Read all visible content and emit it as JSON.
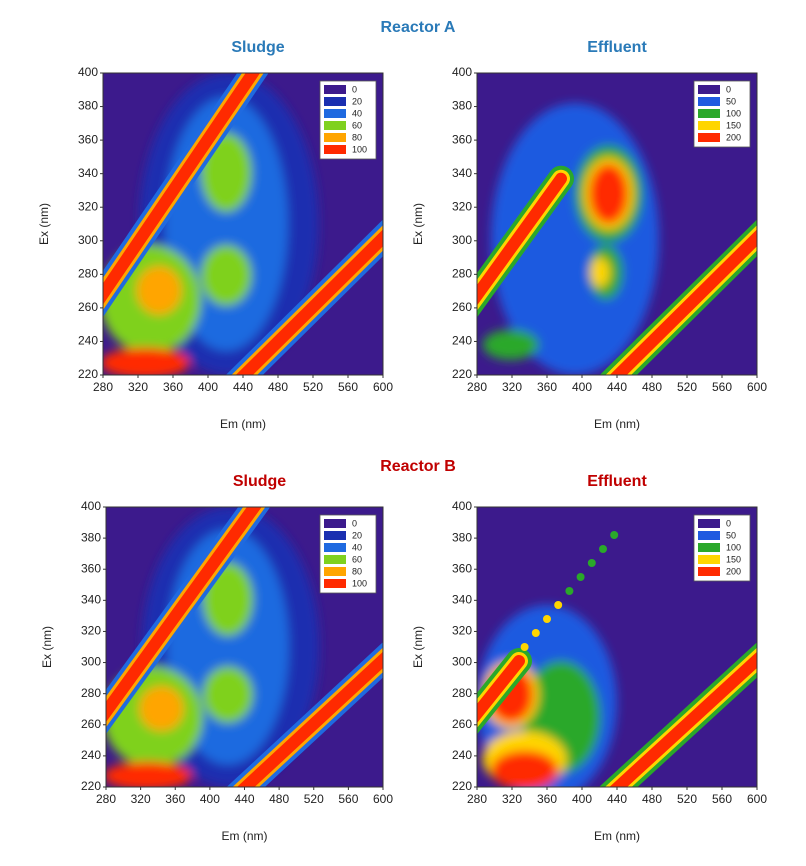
{
  "headings": [
    {
      "text": "Reactor A",
      "color": "#2a7ab8"
    },
    {
      "text": "Reactor B",
      "color": "#c00000"
    }
  ],
  "chart_data": [
    {
      "type": "contour",
      "title": "Sludge",
      "title_color": "#2a7ab8",
      "x_label": "Em (nm)",
      "y_label": "Ex (nm)",
      "xlim": [
        280,
        600
      ],
      "ylim": [
        220,
        400
      ],
      "xticks": [
        280,
        320,
        360,
        400,
        440,
        480,
        520,
        560,
        600
      ],
      "yticks": [
        220,
        240,
        260,
        280,
        300,
        320,
        340,
        360,
        380,
        400
      ],
      "legend": {
        "levels": [
          0,
          20,
          40,
          60,
          80,
          100
        ],
        "colors": [
          "#3c1a8c",
          "#1a2fb0",
          "#1f6ae0",
          "#7fd11e",
          "#ffa500",
          "#ff2a00"
        ]
      }
    },
    {
      "type": "contour",
      "title": "Effluent",
      "title_color": "#2a7ab8",
      "x_label": "Em (nm)",
      "y_label": "Ex (nm)",
      "xlim": [
        280,
        600
      ],
      "ylim": [
        220,
        400
      ],
      "xticks": [
        280,
        320,
        360,
        400,
        440,
        480,
        520,
        560,
        600
      ],
      "yticks": [
        220,
        240,
        260,
        280,
        300,
        320,
        340,
        360,
        380,
        400
      ],
      "legend": {
        "levels": [
          0,
          50,
          100,
          150,
          200
        ],
        "colors": [
          "#3c1a8c",
          "#1f5ae0",
          "#2aa82a",
          "#ffd500",
          "#ff2a00"
        ]
      }
    },
    {
      "type": "contour",
      "title": "Sludge",
      "title_color": "#c00000",
      "x_label": "Em (nm)",
      "y_label": "Ex (nm)",
      "xlim": [
        280,
        600
      ],
      "ylim": [
        220,
        400
      ],
      "xticks": [
        280,
        320,
        360,
        400,
        440,
        480,
        520,
        560,
        600
      ],
      "yticks": [
        220,
        240,
        260,
        280,
        300,
        320,
        340,
        360,
        380,
        400
      ],
      "legend": {
        "levels": [
          0,
          20,
          40,
          60,
          80,
          100
        ],
        "colors": [
          "#3c1a8c",
          "#1a2fb0",
          "#1f6ae0",
          "#7fd11e",
          "#ffa500",
          "#ff2a00"
        ]
      }
    },
    {
      "type": "contour",
      "title": "Effluent",
      "title_color": "#c00000",
      "x_label": "Em (nm)",
      "y_label": "Ex (nm)",
      "xlim": [
        280,
        600
      ],
      "ylim": [
        220,
        400
      ],
      "xticks": [
        280,
        320,
        360,
        400,
        440,
        480,
        520,
        560,
        600
      ],
      "yticks": [
        220,
        240,
        260,
        280,
        300,
        320,
        340,
        360,
        380,
        400
      ],
      "legend": {
        "levels": [
          0,
          50,
          100,
          150,
          200
        ],
        "colors": [
          "#3c1a8c",
          "#1f5ae0",
          "#2aa82a",
          "#ffd500",
          "#ff2a00"
        ]
      }
    }
  ]
}
